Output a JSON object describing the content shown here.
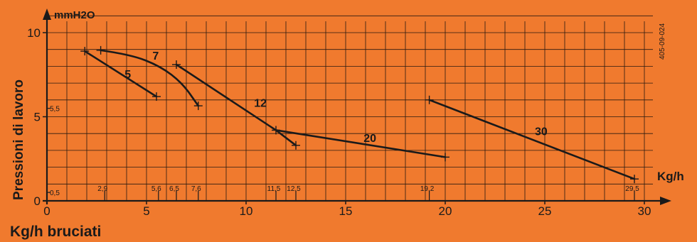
{
  "chart_data": {
    "type": "line",
    "y_unit": "mmH2O",
    "x_unit": "Kg/h",
    "ylabel": "Pressioni di lavoro",
    "xlabel": "Kg/h bruciati",
    "xlim": [
      0,
      30
    ],
    "ylim": [
      0,
      10
    ],
    "grid": true,
    "x_ticks": [
      "0",
      "5",
      "10",
      "15",
      "20",
      "25",
      "30"
    ],
    "y_ticks": [
      "0",
      "5",
      "10"
    ],
    "doc_code": "405-09-024",
    "y_markers": [
      {
        "label": "5,5",
        "y": 5.5
      },
      {
        "label": "0,5",
        "y": 0.5
      }
    ],
    "x_markers": [
      {
        "label": "2,9",
        "x": 2.9
      },
      {
        "label": "5,6",
        "x": 5.6
      },
      {
        "label": "6,5",
        "x": 6.5
      },
      {
        "label": "7,6",
        "x": 7.6
      },
      {
        "label": "11,5",
        "x": 11.5
      },
      {
        "label": "12,5",
        "x": 12.5
      },
      {
        "label": "19,2",
        "x": 19.2
      },
      {
        "label": "29,5",
        "x": 29.5
      }
    ],
    "series": [
      {
        "name": "5",
        "points": [
          [
            1.9,
            8.9
          ],
          [
            5.5,
            6.2
          ]
        ]
      },
      {
        "name": "7",
        "points": [
          [
            2.7,
            8.95
          ],
          [
            4.2,
            8.7
          ],
          [
            5.7,
            8.0
          ],
          [
            6.8,
            7.0
          ],
          [
            7.6,
            5.65
          ]
        ]
      },
      {
        "name": "12",
        "points": [
          [
            6.5,
            8.1
          ],
          [
            11.5,
            4.2
          ],
          [
            12.5,
            3.3
          ]
        ]
      },
      {
        "name": "20",
        "points": [
          [
            11.5,
            4.2
          ],
          [
            20.0,
            2.6
          ]
        ]
      },
      {
        "name": "30",
        "points": [
          [
            19.2,
            6.0
          ],
          [
            29.5,
            1.3
          ]
        ]
      }
    ]
  }
}
